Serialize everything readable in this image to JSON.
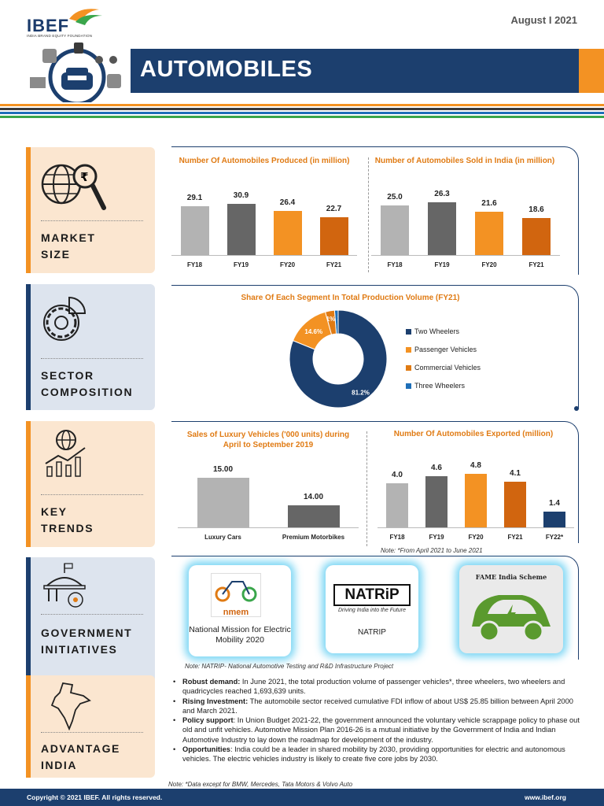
{
  "header": {
    "logo_text": "IBEF",
    "logo_subtitle": "INDIA BRAND EQUITY FOUNDATION",
    "date": "August I 2021",
    "title": "AUTOMOBILES"
  },
  "colors": {
    "navy": "#1c3f6e",
    "orange": "#f39223",
    "dark_orange": "#d1650f",
    "grey": "#b3b3b3",
    "dark_grey": "#666666",
    "blue": "#1e6fb8",
    "green": "#3aa64b"
  },
  "sections": {
    "market_size": {
      "line1": "MARKET",
      "line2": "SIZE",
      "icon": "globe-magnifier-rupee-icon"
    },
    "sector_composition": {
      "line1": "SECTOR",
      "line2": "COMPOSITION",
      "icon": "gear-pie-icon"
    },
    "key_trends": {
      "line1": "KEY",
      "line2": "TRENDS",
      "icon": "globe-bar-growth-icon"
    },
    "government": {
      "line1": "GOVERNMENT",
      "line2": "INITIATIVES",
      "icon": "government-building-icon"
    },
    "advantage": {
      "line1": "ADVANTAGE",
      "line2": "INDIA",
      "icon": "india-map-icon"
    }
  },
  "chart_data": [
    {
      "id": "produced",
      "type": "bar",
      "title": "Number Of Automobiles Produced (in million)",
      "categories": [
        "FY18",
        "FY19",
        "FY20",
        "FY21"
      ],
      "values": [
        29.1,
        30.9,
        26.4,
        22.7
      ],
      "labels": [
        "29.1",
        "30.9",
        "26.4",
        "22.7"
      ],
      "colors": [
        "#b3b3b3",
        "#666666",
        "#f39223",
        "#d1650f"
      ],
      "ylim": [
        0,
        35
      ]
    },
    {
      "id": "sold",
      "type": "bar",
      "title": "Number of Automobiles Sold in India (in million)",
      "categories": [
        "FY18",
        "FY19",
        "FY20",
        "FY21"
      ],
      "values": [
        25.0,
        26.3,
        21.6,
        18.6
      ],
      "labels": [
        "25.0",
        "26.3",
        "21.6",
        "18.6"
      ],
      "colors": [
        "#b3b3b3",
        "#666666",
        "#f39223",
        "#d1650f"
      ],
      "ylim": [
        0,
        30
      ]
    },
    {
      "id": "share",
      "type": "pie",
      "title": "Share Of Each Segment In Total Production Volume (FY21)",
      "categories": [
        "Two Wheelers",
        "Passenger Vehicles",
        "Commercial Vehicles",
        "Three Wheelers"
      ],
      "values": [
        81.2,
        14.6,
        3.1,
        1.2
      ],
      "labels": [
        "81.2%",
        "14.6%",
        "3.1%",
        "1.2%"
      ],
      "colors": [
        "#1c3f6e",
        "#f39223",
        "#e07b14",
        "#1e6fb8"
      ]
    },
    {
      "id": "luxury",
      "type": "bar",
      "title": "Sales of Luxury Vehicles ('000 units) during April to September 2019",
      "categories": [
        "Luxury Cars",
        "Premium Motorbikes"
      ],
      "values": [
        15.0,
        14.0
      ],
      "labels": [
        "15.00",
        "14.00"
      ],
      "colors": [
        "#b3b3b3",
        "#666666"
      ],
      "ylim": [
        13.2,
        15.2
      ]
    },
    {
      "id": "exported",
      "type": "bar",
      "title": "Number Of Automobiles Exported (million)",
      "categories": [
        "FY18",
        "FY19",
        "FY20",
        "FY21",
        "FY22*"
      ],
      "values": [
        4.0,
        4.6,
        4.8,
        4.1,
        1.4
      ],
      "labels": [
        "4.0",
        "4.6",
        "4.8",
        "4.1",
        "1.4"
      ],
      "colors": [
        "#b3b3b3",
        "#666666",
        "#f39223",
        "#d1650f",
        "#1c3f6e"
      ],
      "ylim": [
        0,
        5.4
      ]
    }
  ],
  "notes": {
    "exports": "Note: *From April 2021 to June 2021",
    "natrip": "Note: NATRIP- National Automotive Testing and R&D Infrastructure Project",
    "bottom": "Note: *Data except for BMW, Mercedes, Tata Motors & Volvo Auto"
  },
  "government": {
    "nmem_logo": "nmem",
    "nmem_caption": "National Mission for Electric Mobility 2020",
    "natrip_logo": "NATRiP",
    "natrip_tagline": "Driving India into the Future",
    "natrip_caption": "NATRIP",
    "fame_title": "FAME India Scheme"
  },
  "advantage_points": [
    {
      "label": "Robust demand:",
      "text": " In June 2021, the total production volume of passenger vehicles*, three wheelers, two wheelers and quadricycles reached 1,693,639 units."
    },
    {
      "label": "Rising Investment:",
      "text": " The automobile sector received cumulative FDI inflow of about US$ 25.85 billion between April 2000 and March 2021."
    },
    {
      "label": "Policy support",
      "text": ": In Union Budget 2021-22, the government announced the voluntary vehicle scrappage policy to phase out old and unfit vehicles. Automotive Mission Plan 2016-26 is a mutual initiative by the Government of India and Indian Automotive Industry to lay down the roadmap for development of the industry."
    },
    {
      "label": "Opportunities",
      "text": ": India could be a leader in shared mobility by 2030, providing opportunities for electric and autonomous vehicles. The electric vehicles industry is likely to create five core jobs by 2030."
    }
  ],
  "footer": {
    "copyright": "Copyright © 2021 IBEF. All rights reserved.",
    "website": "www.ibef.org"
  }
}
